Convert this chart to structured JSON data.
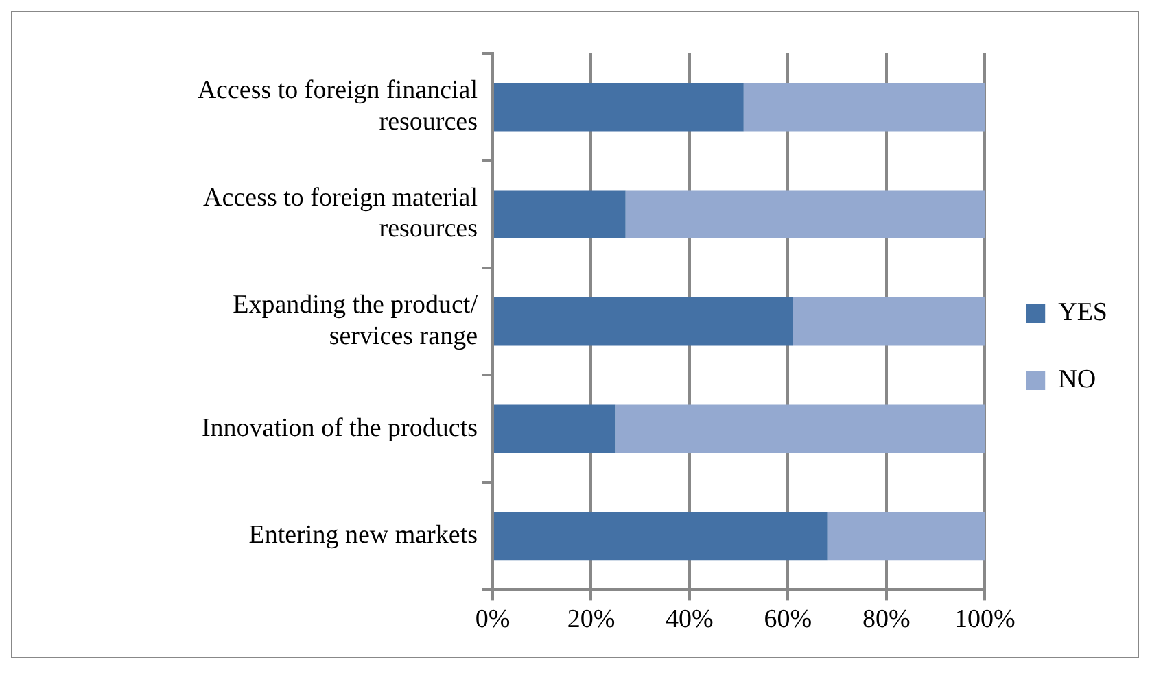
{
  "chart_data": {
    "type": "bar",
    "orientation": "horizontal",
    "stacked": true,
    "categories": [
      "Access to foreign financial resources",
      "Access to foreign material resources",
      "Expanding the product/ services range",
      "Innovation of the products",
      "Entering new markets"
    ],
    "series": [
      {
        "name": "YES",
        "color": "#4471a5",
        "values": [
          51,
          27,
          61,
          25,
          68
        ]
      },
      {
        "name": "NO",
        "color": "#94a9d0",
        "values": [
          49,
          73,
          39,
          75,
          32
        ]
      }
    ],
    "xlim": [
      0,
      100
    ],
    "xticks": [
      {
        "value": 0,
        "label": "0%"
      },
      {
        "value": 20,
        "label": "20%"
      },
      {
        "value": 40,
        "label": "40%"
      },
      {
        "value": 60,
        "label": "60%"
      },
      {
        "value": 80,
        "label": "80%"
      },
      {
        "value": 100,
        "label": "100%"
      }
    ],
    "grid": "x",
    "legend": "right"
  }
}
